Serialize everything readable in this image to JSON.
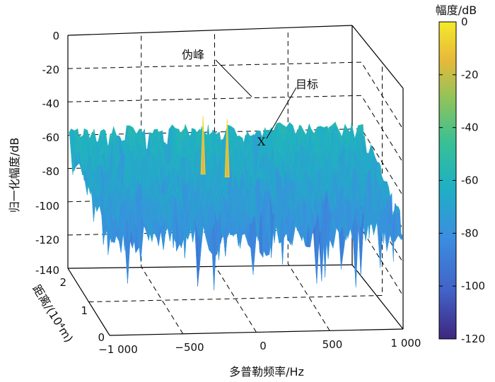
{
  "chart_data": {
    "type": "surface",
    "zlabel": "归一化幅度/dB",
    "ylabel": "距离/(10⁴m)",
    "xlabel": "多普勒频率/Hz",
    "zlim": [
      -140,
      0
    ],
    "ylim": [
      0,
      2
    ],
    "xlim": [
      -1000,
      1000
    ],
    "z_ticks": [
      "0",
      "-20",
      "-40",
      "-60",
      "-80",
      "-100",
      "-120",
      "-140"
    ],
    "y_ticks": [
      "2",
      "1",
      "0"
    ],
    "x_ticks": [
      "−1 000",
      "−500",
      "0",
      "500",
      "1 000"
    ],
    "grid": true,
    "noise_floor_db": [
      -95,
      -55
    ],
    "colormap": "parula",
    "annotations": [
      {
        "label": "伪峰",
        "doppler_hz": -150,
        "range": 1.5,
        "db": -40
      },
      {
        "label": "目标",
        "doppler_hz": 0,
        "range": 1.4,
        "db": -40
      },
      {
        "label": "X",
        "doppler_hz": 0,
        "range": 1.2,
        "db": -62
      }
    ],
    "colorbar": {
      "title": "幅度/dB",
      "range": [
        -120,
        0
      ],
      "ticks": [
        "0",
        "-20",
        "-40",
        "-60",
        "-80",
        "-100",
        "-120"
      ]
    }
  }
}
